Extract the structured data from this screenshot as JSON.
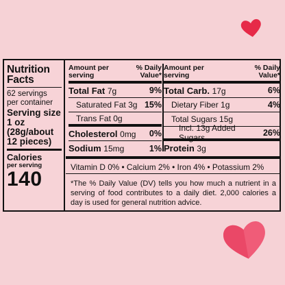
{
  "left": {
    "title_line1": "Nutrition",
    "title_line2": "Facts",
    "servings_line1": "62 servings",
    "servings_line2": "per container",
    "serving_size_label": "Serving size",
    "serving_size_l1": "1 oz",
    "serving_size_l2": "(28g/about",
    "serving_size_l3": "12 pieces)",
    "calories_label": "Calories",
    "calories_sub": "per serving",
    "calories_value": "140"
  },
  "col1": {
    "hdr_left1": "Amount per",
    "hdr_left2": "serving",
    "hdr_right1": "% Daily",
    "hdr_right2": "Value*",
    "rows": [
      {
        "name": "Total Fat",
        "amount": "7g",
        "pct": "9%"
      },
      {
        "name": "Saturated Fat",
        "amount": "3g",
        "pct": "15%"
      },
      {
        "name": "Trans Fat",
        "amount": "0g",
        "pct": ""
      },
      {
        "name": "Cholesterol",
        "amount": "0mg",
        "pct": "0%"
      },
      {
        "name": "Sodium",
        "amount": "15mg",
        "pct": "1%"
      }
    ]
  },
  "col2": {
    "hdr_left1": "Amount per",
    "hdr_left2": "serving",
    "hdr_right1": "% Daily",
    "hdr_right2": "Value*",
    "rows": [
      {
        "name": "Total Carb.",
        "amount": "17g",
        "pct": "6%"
      },
      {
        "name": "Dietary Fiber",
        "amount": "1g",
        "pct": "4%"
      },
      {
        "name": "Total Sugars",
        "amount": "15g",
        "pct": ""
      },
      {
        "name": "Incl. 13g Added Sugars",
        "amount": "",
        "pct": "26%"
      },
      {
        "name": "Protein",
        "amount": "3g",
        "pct": ""
      }
    ]
  },
  "vitamins": "Vitamin D 0% • Calcium 2% • Iron 4% • Potassium 2%",
  "footnote": "*The % Daily Value (DV) tells you how much a nutrient in a serving of food contributes to a daily diet. 2,000 calories a day is used for general nutrition advice.",
  "colors": {
    "background": "#f6d2d6",
    "heart_red": "#e8294a",
    "heart_pink": "#f0607a"
  }
}
